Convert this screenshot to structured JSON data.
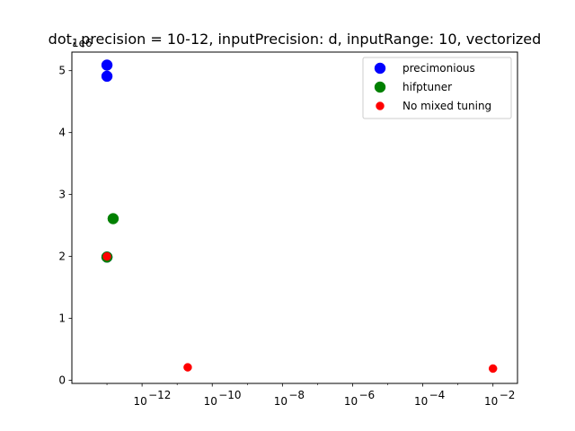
{
  "chart_data": {
    "type": "scatter",
    "title": "dot, precision = 10-12, inputPrecision: d, inputRange: 10, vectorized",
    "xlabel": "",
    "ylabel": "",
    "x_scale": "log",
    "xlim": [
      1e-14,
      0.05
    ],
    "ylim": [
      -50000.0,
      5300000.0
    ],
    "y_offset_label": "1e6",
    "x_ticks": [
      1e-12,
      1e-10,
      1e-08,
      1e-06,
      0.0001,
      0.01
    ],
    "x_tick_labels": [
      "10",
      "10",
      "10",
      "10",
      "10",
      "10"
    ],
    "x_tick_exponents": [
      "−12",
      "−10",
      "−8",
      "−6",
      "−4",
      "−2"
    ],
    "y_ticks": [
      0,
      1000000.0,
      2000000.0,
      3000000.0,
      4000000.0,
      5000000.0
    ],
    "y_tick_labels": [
      "0",
      "1",
      "2",
      "3",
      "4",
      "5"
    ],
    "legend_position": "top-right",
    "series": [
      {
        "name": "precimonious",
        "color": "#0000ff",
        "marker_size": "large",
        "points": [
          {
            "x": 1e-13,
            "y": 5090000.0
          },
          {
            "x": 1e-13,
            "y": 4910000.0
          },
          {
            "x": 1e-13,
            "y": 1990000.0
          }
        ]
      },
      {
        "name": "hifptuner",
        "color": "#008000",
        "marker_size": "large",
        "points": [
          {
            "x": 1.5e-13,
            "y": 2610000.0
          },
          {
            "x": 1e-13,
            "y": 1990000.0
          }
        ]
      },
      {
        "name": "No mixed tuning",
        "color": "#ff0000",
        "marker_size": "small",
        "points": [
          {
            "x": 1e-13,
            "y": 2000000.0
          },
          {
            "x": 2e-11,
            "y": 210000.0
          },
          {
            "x": 0.01,
            "y": 190000.0
          }
        ]
      }
    ]
  }
}
